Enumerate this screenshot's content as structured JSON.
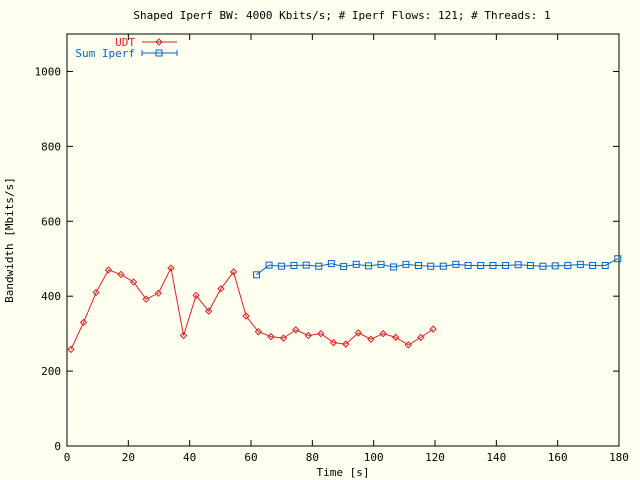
{
  "chart_data": {
    "type": "line",
    "title": "Shaped Iperf BW: 4000 Kbits/s; # Iperf Flows: 121; # Threads: 1",
    "xlabel": "Time [s]",
    "ylabel": "Bandwidth [Mbits/s]",
    "xlim": [
      0,
      180
    ],
    "ylim": [
      0,
      1100
    ],
    "xticks": [
      0,
      20,
      40,
      60,
      80,
      100,
      120,
      140,
      160,
      180
    ],
    "yticks": [
      0,
      200,
      400,
      600,
      800,
      1000
    ],
    "grid": false,
    "legend_position": "top-left",
    "series": [
      {
        "name": "UDT",
        "color": "#dd2222",
        "marker": "diamond",
        "x": [
          1.3,
          5.4,
          9.5,
          13.5,
          17.6,
          21.7,
          25.8,
          29.8,
          33.9,
          38,
          42.1,
          46.2,
          50.2,
          54.3,
          58.4,
          62.4,
          66.5,
          70.6,
          74.6,
          78.7,
          82.8,
          86.9,
          90.9,
          95,
          99.1,
          103.1,
          107.2,
          111.3,
          115.4,
          119.4
        ],
        "y": [
          258,
          330,
          410,
          470,
          458,
          438,
          392,
          408,
          475,
          295,
          402,
          360,
          420,
          465,
          347,
          305,
          292,
          288,
          310,
          295,
          300,
          276,
          272,
          302,
          285,
          300,
          290,
          270,
          290,
          312
        ]
      },
      {
        "name": "Sum Iperf",
        "color": "#0066cc",
        "marker": "square",
        "x": [
          61.8,
          65.9,
          69.9,
          74,
          78,
          82.1,
          86.2,
          90.2,
          94.3,
          98.3,
          102.4,
          106.5,
          110.5,
          114.6,
          118.6,
          122.7,
          126.8,
          130.8,
          134.9,
          138.9,
          143,
          147.1,
          151.1,
          155.2,
          159.2,
          163.3,
          167.4,
          171.4,
          175.5,
          179.6
        ],
        "y": [
          457,
          483,
          480,
          482,
          483,
          480,
          487,
          479,
          485,
          481,
          485,
          478,
          485,
          482,
          480,
          480,
          485,
          482,
          482,
          482,
          482,
          484,
          482,
          480,
          481,
          482,
          485,
          482,
          482,
          500
        ]
      }
    ]
  }
}
